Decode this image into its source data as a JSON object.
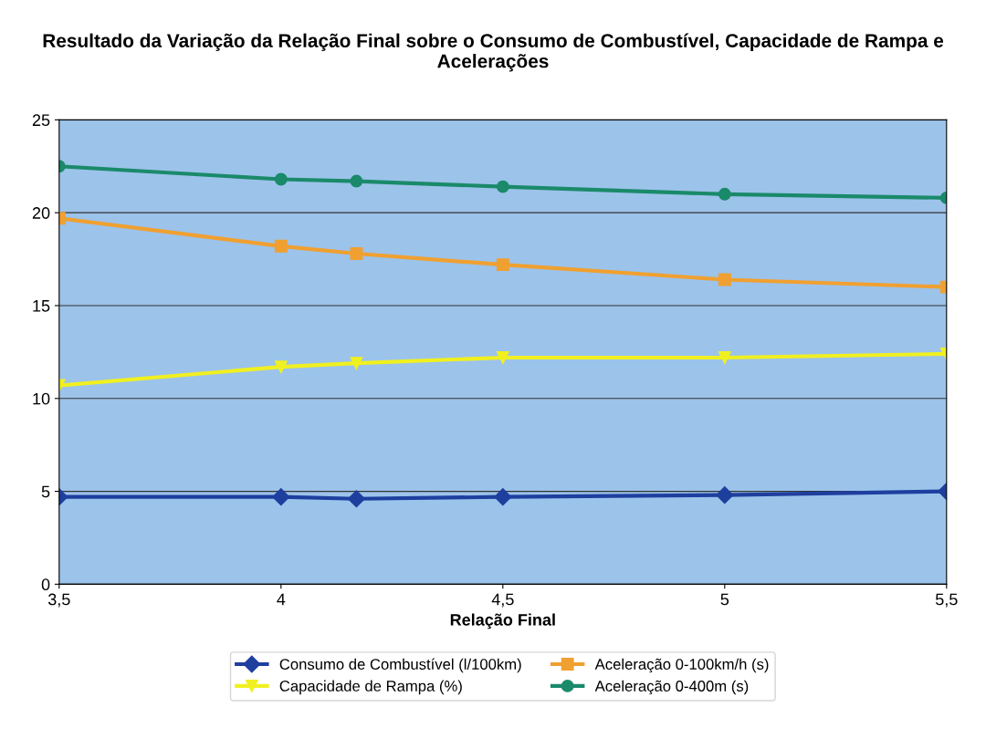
{
  "chart_data": {
    "type": "line",
    "title": "Resultado da Variação da Relação Final sobre o Consumo de Combustível, Capacidade de Rampa e Acelerações",
    "xlabel": "Relação Final",
    "x": [
      3.5,
      4,
      4.17,
      4.5,
      5,
      5.5
    ],
    "xlim": [
      3.5,
      5.5
    ],
    "xticks": [
      {
        "value": 3.5,
        "label": "3,5"
      },
      4,
      {
        "value": 4.5,
        "label": "4,5"
      },
      5,
      {
        "value": 5.5,
        "label": "5,5"
      }
    ],
    "ylim": [
      0,
      25
    ],
    "yticks": [
      0,
      5,
      10,
      15,
      20,
      25
    ],
    "grid": "y",
    "legend": "bottom",
    "series": [
      {
        "name": "Consumo de Combustível (l/100km)",
        "color": "#1f3f9f",
        "marker": "diamond",
        "values": [
          4.7,
          4.7,
          4.6,
          4.7,
          4.8,
          5.0
        ]
      },
      {
        "name": "Capacidade de Rampa (%)",
        "color": "#f0f020",
        "marker": "triangle",
        "values": [
          10.7,
          11.7,
          11.9,
          12.2,
          12.2,
          12.4
        ]
      },
      {
        "name": "Aceleração 0-100km/h (s)",
        "color": "#f0a030",
        "marker": "square",
        "values": [
          19.7,
          18.2,
          17.8,
          17.2,
          16.4,
          16.0
        ]
      },
      {
        "name": "Aceleração 0-400m (s)",
        "color": "#1a8a6a",
        "marker": "circle",
        "values": [
          22.5,
          21.8,
          21.7,
          21.4,
          21.0,
          20.8
        ]
      }
    ]
  }
}
